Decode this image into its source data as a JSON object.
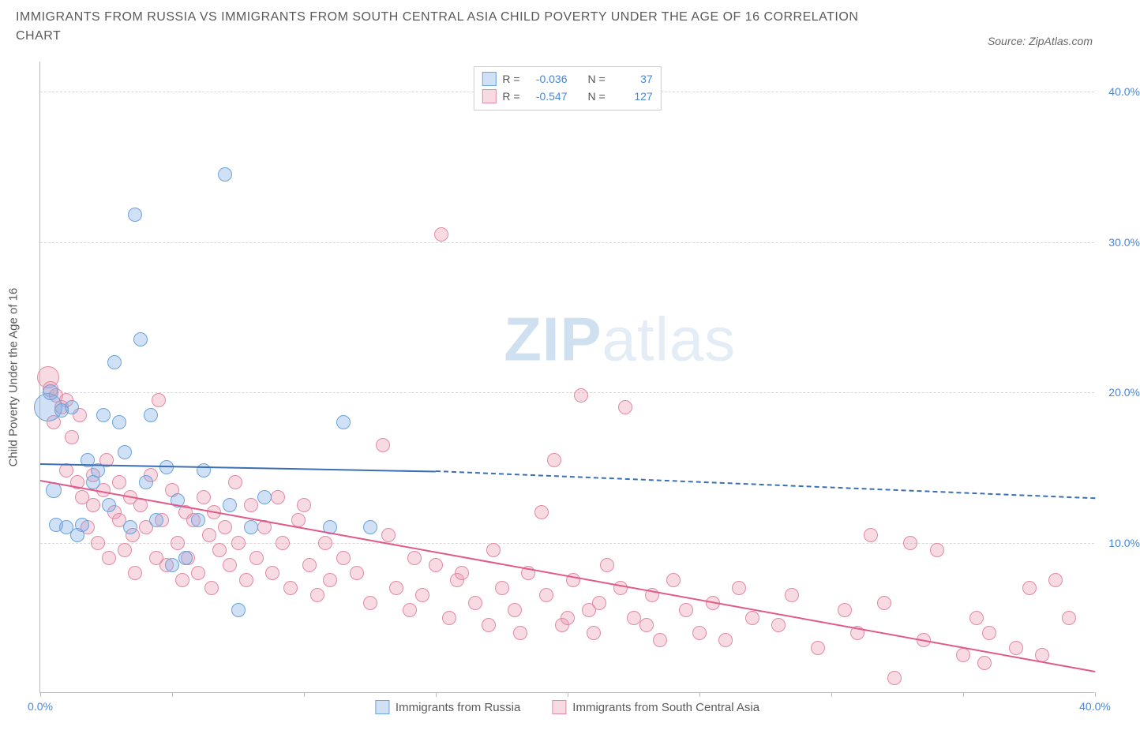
{
  "title": "IMMIGRANTS FROM RUSSIA VS IMMIGRANTS FROM SOUTH CENTRAL ASIA CHILD POVERTY UNDER THE AGE OF 16 CORRELATION CHART",
  "source_label": "Source: ZipAtlas.com",
  "y_axis_label": "Child Poverty Under the Age of 16",
  "watermark": {
    "part1": "ZIP",
    "part2": "atlas"
  },
  "chart": {
    "type": "scatter",
    "xlim": [
      0,
      40
    ],
    "ylim": [
      0,
      42
    ],
    "x_ticks": [
      0,
      5,
      10,
      15,
      20,
      25,
      30,
      35,
      40
    ],
    "y_ticks": [
      10,
      20,
      30,
      40
    ],
    "x_tick_labels": {
      "0": "0.0%",
      "40": "40.0%"
    },
    "y_tick_labels": {
      "10": "10.0%",
      "20": "20.0%",
      "30": "30.0%",
      "40": "40.0%"
    },
    "grid_color": "#d8d8d8",
    "tick_label_color": "#4887d9",
    "tick_fontsize": 14,
    "background_color": "#ffffff",
    "axis_color": "#bbbbbb"
  },
  "series": [
    {
      "id": "russia",
      "label": "Immigrants from Russia",
      "fill": "rgba(120,170,225,0.35)",
      "stroke": "#6aa3dd",
      "line_color": "#3b6fb5",
      "marker_radius": 9,
      "r_value": "-0.036",
      "n_value": "37",
      "regression": {
        "x1": 0,
        "y1": 15.3,
        "x2_solid": 15,
        "y2_solid": 14.8,
        "x2": 40,
        "y2": 13.0
      },
      "points": [
        [
          0.3,
          19.0,
          18
        ],
        [
          0.4,
          20.0,
          10
        ],
        [
          0.5,
          13.5,
          10
        ],
        [
          0.6,
          11.2,
          9
        ],
        [
          0.8,
          18.8,
          9
        ],
        [
          1.0,
          11.0,
          9
        ],
        [
          1.2,
          19.0,
          9
        ],
        [
          1.4,
          10.5,
          9
        ],
        [
          1.6,
          11.2,
          9
        ],
        [
          1.8,
          15.5,
          9
        ],
        [
          2.0,
          14.0,
          9
        ],
        [
          2.2,
          14.8,
          9
        ],
        [
          2.4,
          18.5,
          9
        ],
        [
          2.6,
          12.5,
          9
        ],
        [
          2.8,
          22.0,
          9
        ],
        [
          3.0,
          18.0,
          9
        ],
        [
          3.2,
          16.0,
          9
        ],
        [
          3.4,
          11.0,
          9
        ],
        [
          3.6,
          31.8,
          9
        ],
        [
          3.8,
          23.5,
          9
        ],
        [
          4.0,
          14.0,
          9
        ],
        [
          4.2,
          18.5,
          9
        ],
        [
          4.4,
          11.5,
          9
        ],
        [
          4.8,
          15.0,
          9
        ],
        [
          5.0,
          8.5,
          9
        ],
        [
          5.2,
          12.8,
          9
        ],
        [
          5.5,
          9.0,
          9
        ],
        [
          6.0,
          11.5,
          9
        ],
        [
          6.2,
          14.8,
          9
        ],
        [
          7.0,
          34.5,
          9
        ],
        [
          7.2,
          12.5,
          9
        ],
        [
          7.5,
          5.5,
          9
        ],
        [
          8.0,
          11.0,
          9
        ],
        [
          8.5,
          13.0,
          9
        ],
        [
          11.0,
          11.0,
          9
        ],
        [
          11.5,
          18.0,
          9
        ],
        [
          12.5,
          11.0,
          9
        ]
      ]
    },
    {
      "id": "sca",
      "label": "Immigrants from South Central Asia",
      "fill": "rgba(235,150,175,0.35)",
      "stroke": "#e28aa5",
      "line_color": "#e05a8a",
      "marker_radius": 9,
      "r_value": "-0.547",
      "n_value": "127",
      "regression": {
        "x1": 0,
        "y1": 14.2,
        "x2_solid": 40,
        "y2_solid": 1.5,
        "x2": 40,
        "y2": 1.5
      },
      "points": [
        [
          0.3,
          21.0,
          14
        ],
        [
          0.4,
          20.2,
          10
        ],
        [
          0.5,
          18.0,
          9
        ],
        [
          0.6,
          19.8,
          9
        ],
        [
          0.8,
          19.0,
          9
        ],
        [
          1.0,
          19.5,
          9
        ],
        [
          1.0,
          14.8,
          9
        ],
        [
          1.2,
          17.0,
          9
        ],
        [
          1.4,
          14.0,
          9
        ],
        [
          1.5,
          18.5,
          9
        ],
        [
          1.6,
          13.0,
          9
        ],
        [
          1.8,
          11.0,
          9
        ],
        [
          2.0,
          14.5,
          9
        ],
        [
          2.0,
          12.5,
          9
        ],
        [
          2.2,
          10.0,
          9
        ],
        [
          2.4,
          13.5,
          9
        ],
        [
          2.5,
          15.5,
          9
        ],
        [
          2.6,
          9.0,
          9
        ],
        [
          2.8,
          12.0,
          9
        ],
        [
          3.0,
          14.0,
          9
        ],
        [
          3.0,
          11.5,
          9
        ],
        [
          3.2,
          9.5,
          9
        ],
        [
          3.4,
          13.0,
          9
        ],
        [
          3.5,
          10.5,
          9
        ],
        [
          3.6,
          8.0,
          9
        ],
        [
          3.8,
          12.5,
          9
        ],
        [
          4.0,
          11.0,
          9
        ],
        [
          4.2,
          14.5,
          9
        ],
        [
          4.4,
          9.0,
          9
        ],
        [
          4.5,
          19.5,
          9
        ],
        [
          4.6,
          11.5,
          9
        ],
        [
          4.8,
          8.5,
          9
        ],
        [
          5.0,
          13.5,
          9
        ],
        [
          5.2,
          10.0,
          9
        ],
        [
          5.4,
          7.5,
          9
        ],
        [
          5.5,
          12.0,
          9
        ],
        [
          5.6,
          9.0,
          9
        ],
        [
          5.8,
          11.5,
          9
        ],
        [
          6.0,
          8.0,
          9
        ],
        [
          6.2,
          13.0,
          9
        ],
        [
          6.4,
          10.5,
          9
        ],
        [
          6.5,
          7.0,
          9
        ],
        [
          6.6,
          12.0,
          9
        ],
        [
          6.8,
          9.5,
          9
        ],
        [
          7.0,
          11.0,
          9
        ],
        [
          7.2,
          8.5,
          9
        ],
        [
          7.4,
          14.0,
          9
        ],
        [
          7.5,
          10.0,
          9
        ],
        [
          7.8,
          7.5,
          9
        ],
        [
          8.0,
          12.5,
          9
        ],
        [
          8.2,
          9.0,
          9
        ],
        [
          8.5,
          11.0,
          9
        ],
        [
          8.8,
          8.0,
          9
        ],
        [
          9.0,
          13.0,
          9
        ],
        [
          9.2,
          10.0,
          9
        ],
        [
          9.5,
          7.0,
          9
        ],
        [
          9.8,
          11.5,
          9
        ],
        [
          10.0,
          12.5,
          9
        ],
        [
          10.2,
          8.5,
          9
        ],
        [
          10.5,
          6.5,
          9
        ],
        [
          10.8,
          10.0,
          9
        ],
        [
          11.0,
          7.5,
          9
        ],
        [
          11.5,
          9.0,
          9
        ],
        [
          12.0,
          8.0,
          9
        ],
        [
          12.5,
          6.0,
          9
        ],
        [
          13.0,
          16.5,
          9
        ],
        [
          13.2,
          10.5,
          9
        ],
        [
          13.5,
          7.0,
          9
        ],
        [
          14.0,
          5.5,
          9
        ],
        [
          14.2,
          9.0,
          9
        ],
        [
          14.5,
          6.5,
          9
        ],
        [
          15.0,
          8.5,
          9
        ],
        [
          15.2,
          30.5,
          9
        ],
        [
          15.5,
          5.0,
          9
        ],
        [
          15.8,
          7.5,
          9
        ],
        [
          16.0,
          8.0,
          9
        ],
        [
          16.5,
          6.0,
          9
        ],
        [
          17.0,
          4.5,
          9
        ],
        [
          17.2,
          9.5,
          9
        ],
        [
          17.5,
          7.0,
          9
        ],
        [
          18.0,
          5.5,
          9
        ],
        [
          18.2,
          4.0,
          9
        ],
        [
          18.5,
          8.0,
          9
        ],
        [
          19.0,
          12.0,
          9
        ],
        [
          19.2,
          6.5,
          9
        ],
        [
          19.5,
          15.5,
          9
        ],
        [
          19.8,
          4.5,
          9
        ],
        [
          20.0,
          5.0,
          9
        ],
        [
          20.2,
          7.5,
          9
        ],
        [
          20.5,
          19.8,
          9
        ],
        [
          20.8,
          5.5,
          9
        ],
        [
          21.0,
          4.0,
          9
        ],
        [
          21.2,
          6.0,
          9
        ],
        [
          21.5,
          8.5,
          9
        ],
        [
          22.0,
          7.0,
          9
        ],
        [
          22.2,
          19.0,
          9
        ],
        [
          22.5,
          5.0,
          9
        ],
        [
          23.0,
          4.5,
          9
        ],
        [
          23.2,
          6.5,
          9
        ],
        [
          23.5,
          3.5,
          9
        ],
        [
          24.0,
          7.5,
          9
        ],
        [
          24.5,
          5.5,
          9
        ],
        [
          25.0,
          4.0,
          9
        ],
        [
          25.5,
          6.0,
          9
        ],
        [
          26.0,
          3.5,
          9
        ],
        [
          26.5,
          7.0,
          9
        ],
        [
          27.0,
          5.0,
          9
        ],
        [
          28.0,
          4.5,
          9
        ],
        [
          28.5,
          6.5,
          9
        ],
        [
          29.5,
          3.0,
          9
        ],
        [
          30.5,
          5.5,
          9
        ],
        [
          31.0,
          4.0,
          9
        ],
        [
          31.5,
          10.5,
          9
        ],
        [
          32.0,
          6.0,
          9
        ],
        [
          32.4,
          1.0,
          9
        ],
        [
          33.0,
          10.0,
          9
        ],
        [
          33.5,
          3.5,
          9
        ],
        [
          34.0,
          9.5,
          9
        ],
        [
          35.0,
          2.5,
          9
        ],
        [
          35.5,
          5.0,
          9
        ],
        [
          35.8,
          2.0,
          9
        ],
        [
          36.0,
          4.0,
          9
        ],
        [
          37.0,
          3.0,
          9
        ],
        [
          37.5,
          7.0,
          9
        ],
        [
          38.0,
          2.5,
          9
        ],
        [
          38.5,
          7.5,
          9
        ],
        [
          39.0,
          5.0,
          9
        ]
      ]
    }
  ],
  "legend_top": {
    "r_label": "R =",
    "n_label": "N ="
  }
}
